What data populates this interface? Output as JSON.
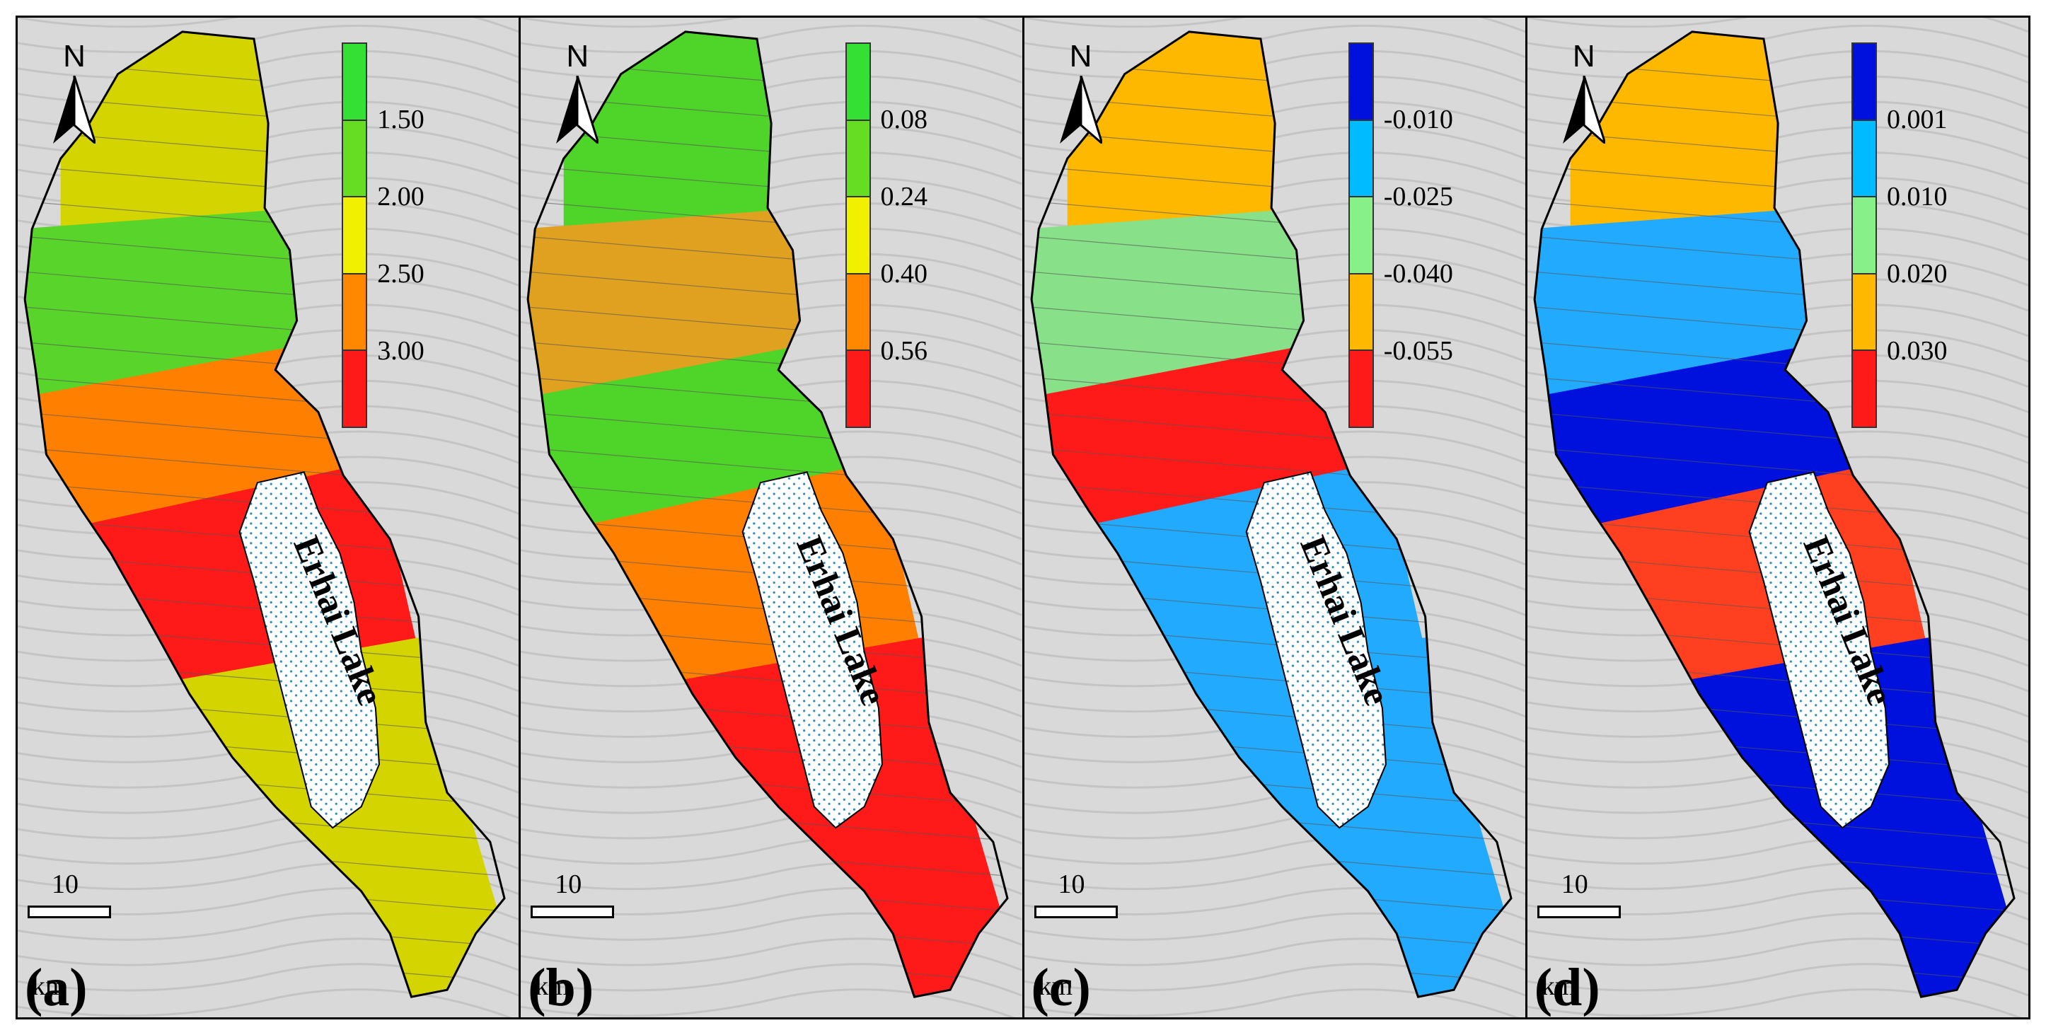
{
  "lake_label": "Erhai Lake",
  "north_label": "N",
  "scale": {
    "value": "10",
    "unit": "km"
  },
  "panels": [
    {
      "label": "(a)",
      "legend": {
        "colors": [
          "#33e033",
          "#66dd22",
          "#f0f000",
          "#ff8800",
          "#ff1a1a"
        ],
        "ticks": [
          "1.50",
          "2.00",
          "2.50",
          "3.00"
        ]
      },
      "regions": [
        "#d4d400",
        "#58d42a",
        "#ff8000",
        "#ff1a1a",
        "#d4d400"
      ]
    },
    {
      "label": "(b)",
      "legend": {
        "colors": [
          "#33e033",
          "#66dd22",
          "#f0f000",
          "#ff8800",
          "#ff1a1a"
        ],
        "ticks": [
          "0.08",
          "0.24",
          "0.40",
          "0.56"
        ]
      },
      "regions": [
        "#4fd42a",
        "#e0a020",
        "#4fd42a",
        "#ff8000",
        "#ff1a1a"
      ]
    },
    {
      "label": "(c)",
      "legend": {
        "colors": [
          "#0011dd",
          "#00bbff",
          "#88f088",
          "#ffb800",
          "#ff1a1a"
        ],
        "ticks": [
          "-0.010",
          "-0.025",
          "-0.040",
          "-0.055"
        ]
      },
      "regions": [
        "#ffb800",
        "#88e088",
        "#ff1a1a",
        "#22aaff",
        "#22aaff"
      ]
    },
    {
      "label": "(d)",
      "legend": {
        "colors": [
          "#0011dd",
          "#00bbff",
          "#88f088",
          "#ffb800",
          "#ff1a1a"
        ],
        "ticks": [
          "0.001",
          "0.010",
          "0.020",
          "0.030"
        ]
      },
      "regions": [
        "#ffb800",
        "#22aaff",
        "#0011dd",
        "#ff4020",
        "#0011dd"
      ]
    }
  ]
}
